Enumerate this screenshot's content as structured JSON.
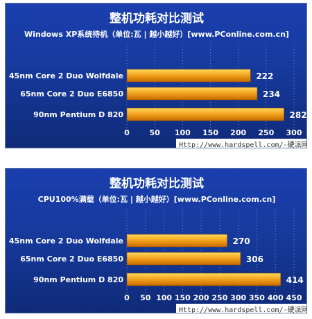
{
  "colors": {
    "bar_top": "#ffd85c",
    "bar_mid": "#f2a01a",
    "bar_bottom": "#c46a00",
    "background": "#163a9c",
    "url_bg": "#ffffff"
  },
  "chart_data": [
    {
      "type": "bar",
      "orientation": "horizontal",
      "title": "整机功耗对比测试",
      "subtitle": "Windows XP系统待机（单位:瓦 | 越小越好）[www.PConline.com.cn]",
      "categories": [
        "45nm Core 2 Duo Wolfdale",
        "65nm Core 2 Duo E6850",
        "90nm  Pentium D 820"
      ],
      "values": [
        222,
        234,
        282
      ],
      "xlim": [
        0,
        300
      ],
      "ticks": [
        "0",
        "50",
        "100",
        "150",
        "200",
        "250",
        "300"
      ],
      "grid": true,
      "watermark": "Http://www.hardspell.com/-硬派网"
    },
    {
      "type": "bar",
      "orientation": "horizontal",
      "title": "整机功耗对比测试",
      "subtitle": "CPU100%满载（单位:瓦 | 越小越好）[www.PConline.com.cn]",
      "categories": [
        "45nm Core 2 Duo Wolfdale",
        "65nm Core 2 Duo E6850",
        "90nm  Pentium D 820"
      ],
      "values": [
        270,
        306,
        414
      ],
      "xlim": [
        0,
        450
      ],
      "ticks": [
        "0",
        "50",
        "100",
        "150",
        "200",
        "250",
        "300",
        "350",
        "400",
        "450"
      ],
      "grid": true,
      "watermark": "Http://www.hardspell.com/-硬派网"
    }
  ]
}
